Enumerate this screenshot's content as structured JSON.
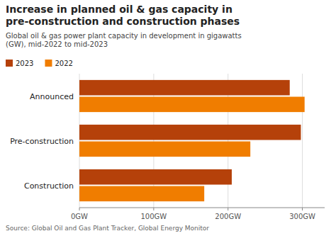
{
  "chart_data": {
    "type": "bar",
    "orientation": "horizontal",
    "title": "Increase in planned oil & gas capacity in\npre-construction and construction phases",
    "subtitle": "Global oil & gas power plant capacity in development in gigawatts\n(GW), mid-2022 to mid-2023",
    "source": "Source: Global Oil and Gas Plant Tracker, Global Energy Monitor",
    "categories": [
      "Announced",
      "Pre-construction",
      "Construction"
    ],
    "series": [
      {
        "name": "2023",
        "color": "#b5410a",
        "values": [
          283,
          298,
          205
        ]
      },
      {
        "name": "2022",
        "color": "#f07d00",
        "values": [
          303,
          230,
          168
        ]
      }
    ],
    "xlim": [
      0,
      330
    ],
    "xticks": [
      {
        "value": 0,
        "label": "0GW"
      },
      {
        "value": 100,
        "label": "100GW"
      },
      {
        "value": 200,
        "label": "200GW"
      },
      {
        "value": 300,
        "label": "300GW"
      }
    ],
    "grid": true,
    "legend": "top-left"
  }
}
